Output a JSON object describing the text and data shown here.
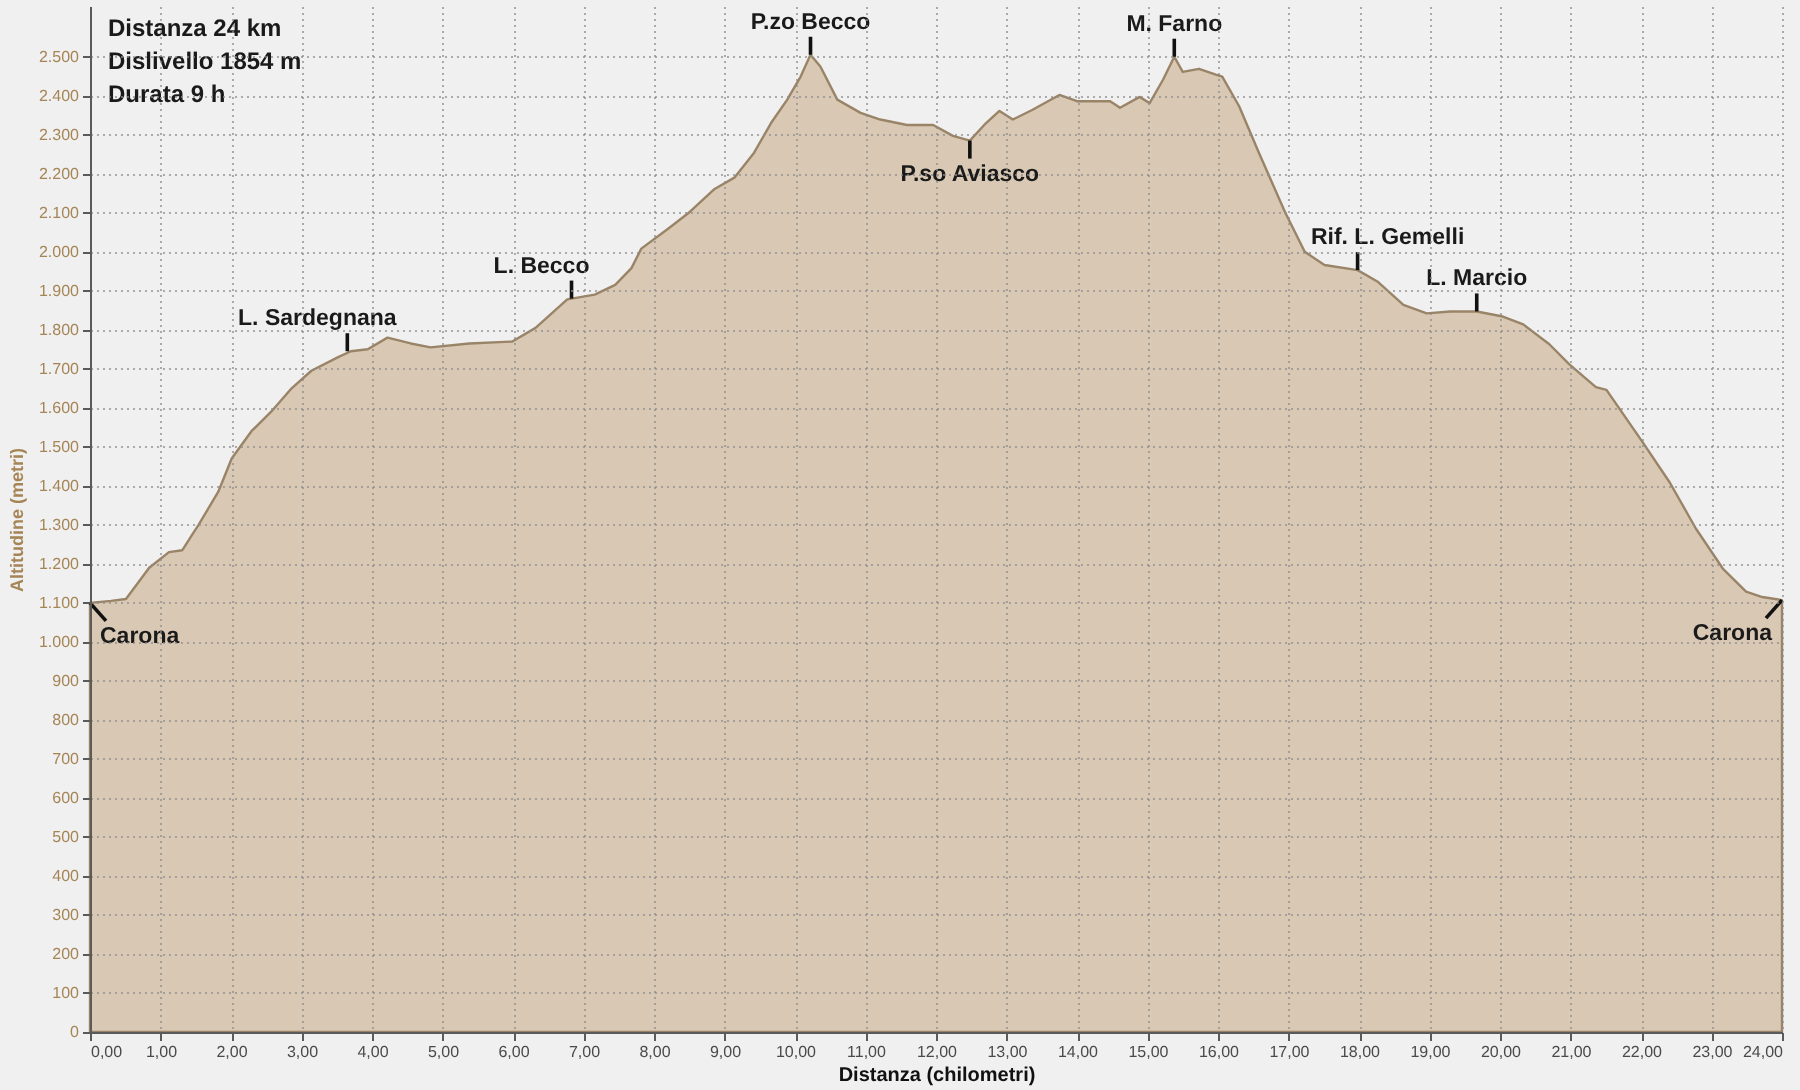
{
  "chart_data": {
    "type": "area",
    "xlabel": "Distanza (chilometri)",
    "ylabel": "Altitudine (metri)",
    "x": [
      0,
      0.3,
      0.51,
      0.84,
      1.12,
      1.31,
      1.45,
      1.54,
      1.82,
      2.01,
      2.29,
      2.57,
      2.86,
      3.14,
      3.52,
      3.7,
      3.94,
      4.22,
      4.55,
      4.83,
      5.38,
      5.99,
      6.32,
      6.77,
      7.16,
      7.45,
      7.68,
      7.82,
      8.2,
      8.48,
      8.86,
      9.14,
      9.42,
      9.66,
      9.89,
      10.08,
      10.22,
      10.36,
      10.6,
      10.93,
      11.21,
      11.59,
      11.96,
      12.24,
      12.48,
      12.71,
      12.9,
      13.09,
      13.37,
      13.75,
      14.0,
      14.47,
      14.61,
      14.89,
      15.03,
      15.22,
      15.38,
      15.5,
      15.73,
      15.97,
      16.06,
      16.3,
      16.58,
      16.95,
      17.23,
      17.51,
      17.98,
      18.26,
      18.63,
      18.96,
      19.29,
      19.67,
      20.04,
      20.33,
      20.7,
      20.98,
      21.36,
      21.51,
      22.03,
      22.41,
      22.78,
      23.16,
      23.49,
      23.72,
      24.0
    ],
    "series": [
      {
        "color": "#d9c9b4",
        "values": [
          1100,
          1105,
          1110,
          1190,
          1230,
          1235,
          1275,
          1300,
          1385,
          1470,
          1540,
          1590,
          1650,
          1695,
          1730,
          1745,
          1750,
          1780,
          1765,
          1755,
          1765,
          1770,
          1805,
          1878,
          1890,
          1915,
          1958,
          2008,
          2059,
          2098,
          2161,
          2190,
          2254,
          2330,
          2390,
          2449,
          2505,
          2475,
          2390,
          2356,
          2339,
          2325,
          2325,
          2297,
          2285,
          2330,
          2361,
          2339,
          2364,
          2402,
          2386,
          2386,
          2369,
          2397,
          2381,
          2441,
          2500,
          2461,
          2469,
          2454,
          2449,
          2373,
          2254,
          2102,
          2000,
          1966,
          1953,
          1924,
          1864,
          1842,
          1847,
          1847,
          1834,
          1814,
          1763,
          1712,
          1653,
          1646,
          1510,
          1408,
          1290,
          1188,
          1129,
          1115,
          1107
        ]
      }
    ],
    "xlim": [
      0,
      24
    ],
    "ylim": [
      0,
      2630
    ],
    "xticks": [
      {
        "value": 0,
        "label": "0,00"
      },
      {
        "value": 1,
        "label": "1,00"
      },
      {
        "value": 2,
        "label": "2,00"
      },
      {
        "value": 3,
        "label": "3,00"
      },
      {
        "value": 4,
        "label": "4,00"
      },
      {
        "value": 5,
        "label": "5,00"
      },
      {
        "value": 6,
        "label": "6,00"
      },
      {
        "value": 7,
        "label": "7,00"
      },
      {
        "value": 8,
        "label": "8,00"
      },
      {
        "value": 9,
        "label": "9,00"
      },
      {
        "value": 10,
        "label": "10,00"
      },
      {
        "value": 11,
        "label": "11,00"
      },
      {
        "value": 12,
        "label": "12,00"
      },
      {
        "value": 13,
        "label": "13,00"
      },
      {
        "value": 14,
        "label": "14,00"
      },
      {
        "value": 15,
        "label": "15,00"
      },
      {
        "value": 16,
        "label": "16,00"
      },
      {
        "value": 17,
        "label": "17,00"
      },
      {
        "value": 18,
        "label": "18,00"
      },
      {
        "value": 19,
        "label": "19,00"
      },
      {
        "value": 20,
        "label": "20,00"
      },
      {
        "value": 21,
        "label": "21,00"
      },
      {
        "value": 22,
        "label": "22,00"
      },
      {
        "value": 23,
        "label": "23,00"
      },
      {
        "value": 24,
        "label": "24,00"
      }
    ],
    "yticks": [
      0,
      100,
      200,
      300,
      400,
      500,
      600,
      700,
      800,
      900,
      {
        "value": 1000,
        "label": "1.000"
      },
      {
        "value": 1100,
        "label": "1.100"
      },
      {
        "value": 1200,
        "label": "1.200"
      },
      {
        "value": 1300,
        "label": "1.300"
      },
      {
        "value": 1400,
        "label": "1.400"
      },
      {
        "value": 1500,
        "label": "1.500"
      },
      {
        "value": 1600,
        "label": "1.600"
      },
      {
        "value": 1700,
        "label": "1.700"
      },
      {
        "value": 1800,
        "label": "1.800"
      },
      {
        "value": 1900,
        "label": "1.900"
      },
      {
        "value": 2000,
        "label": "2.000"
      },
      {
        "value": 2100,
        "label": "2.100"
      },
      {
        "value": 2200,
        "label": "2.200"
      },
      {
        "value": 2300,
        "label": "2.300"
      },
      {
        "value": 2400,
        "label": "2.400"
      },
      {
        "value": 2500,
        "label": "2.500"
      }
    ],
    "grid": true,
    "annotations": [
      "Distanza 24 km",
      "Dislivello 1854 m",
      "Durata 9 h",
      {
        "text": "Carona",
        "x": 0,
        "y": 1100
      },
      {
        "text": "L. Sardegnana",
        "x": 3.65,
        "y": 1745
      },
      {
        "text": "L. Becco",
        "x": 6.83,
        "y": 1880
      },
      {
        "text": "P.zo Becco",
        "x": 10.22,
        "y": 2505
      },
      {
        "text": "P.so Aviasco",
        "x": 12.48,
        "y": 2285
      },
      {
        "text": "M. Farno",
        "x": 15.38,
        "y": 2500
      },
      {
        "text": "Rif. L. Gemelli",
        "x": 17.98,
        "y": 1953
      },
      {
        "text": "L. Marcio",
        "x": 19.67,
        "y": 1847
      },
      {
        "text": "Carona",
        "x": 24.0,
        "y": 1107
      }
    ]
  }
}
